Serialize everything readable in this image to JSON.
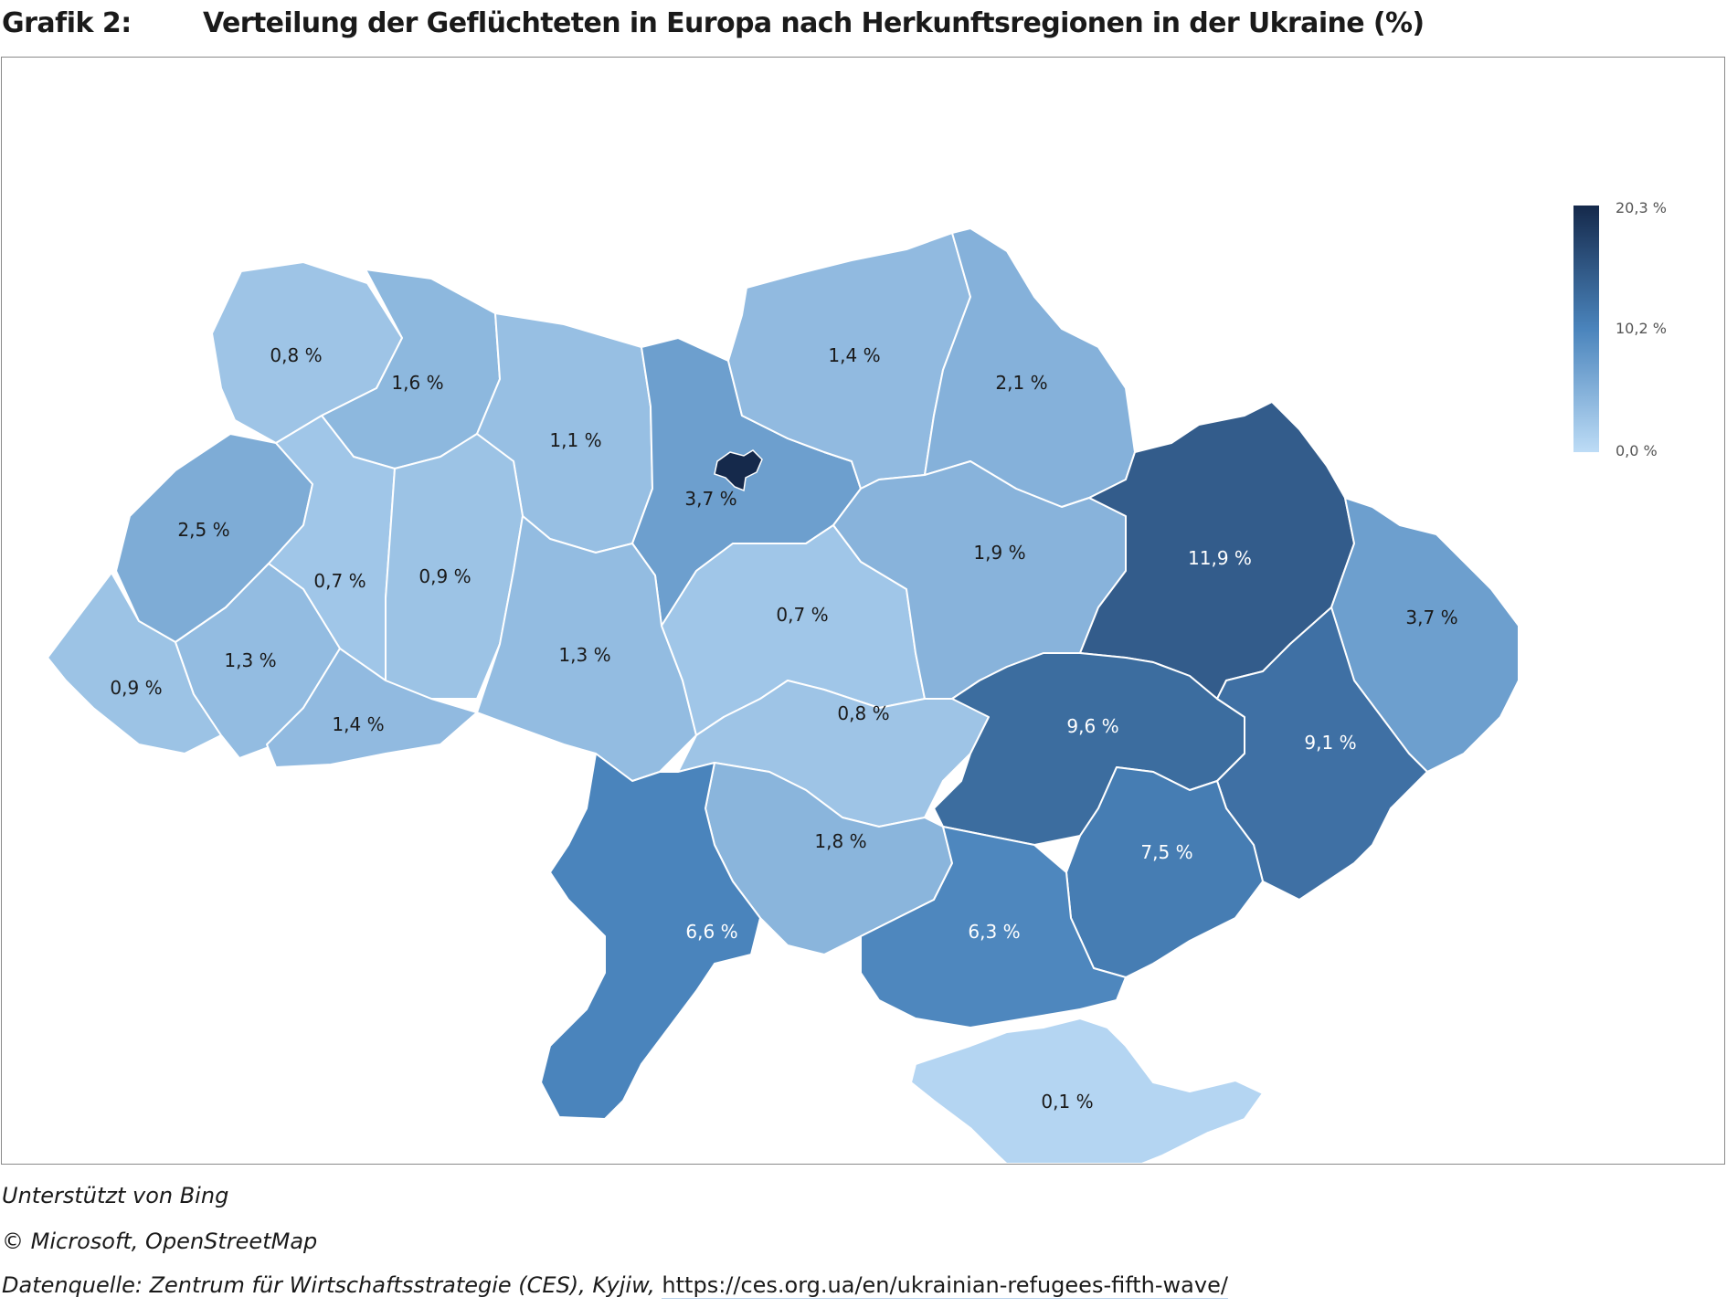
{
  "title": {
    "label": "Grafik 2:",
    "text": "Verteilung der Geflüchteten in Europa nach Herkunftsregionen in der Ukraine (%)"
  },
  "chart_data": {
    "type": "choropleth",
    "unit": "%",
    "regions": [
      {
        "id": "wolyn",
        "label": "0,8 %",
        "value": 0.8
      },
      {
        "id": "riwne",
        "label": "1,6 %",
        "value": 1.6
      },
      {
        "id": "schytomyr",
        "label": "1,1 %",
        "value": 1.1
      },
      {
        "id": "kyjiw-oblast",
        "label": "3,7 %",
        "value": 3.7
      },
      {
        "id": "kyjiw-stadt",
        "label": "",
        "value": 20.3
      },
      {
        "id": "tschernihiw",
        "label": "1,4 %",
        "value": 1.4
      },
      {
        "id": "sumy",
        "label": "2,1 %",
        "value": 2.1
      },
      {
        "id": "lwiw",
        "label": "2,5 %",
        "value": 2.5
      },
      {
        "id": "ternopil",
        "label": "0,7 %",
        "value": 0.7
      },
      {
        "id": "chmelnyzkyj",
        "label": "0,9 %",
        "value": 0.9
      },
      {
        "id": "winnyzja",
        "label": "1,3 %",
        "value": 1.3
      },
      {
        "id": "tscherkassy",
        "label": "0,7 %",
        "value": 0.7
      },
      {
        "id": "poltawa",
        "label": "1,9 %",
        "value": 1.9
      },
      {
        "id": "charkiw",
        "label": "11,9 %",
        "value": 11.9
      },
      {
        "id": "luhansk",
        "label": "3,7 %",
        "value": 3.7
      },
      {
        "id": "transkarpatien",
        "label": "0,9 %",
        "value": 0.9
      },
      {
        "id": "iwano-frankiwsk",
        "label": "1,3 %",
        "value": 1.3
      },
      {
        "id": "tscherniwzi",
        "label": "1,4 %",
        "value": 1.4
      },
      {
        "id": "kirowohrad",
        "label": "0,8 %",
        "value": 0.8
      },
      {
        "id": "dnipropetrowsk",
        "label": "9,6 %",
        "value": 9.6
      },
      {
        "id": "donezk",
        "label": "9,1 %",
        "value": 9.1
      },
      {
        "id": "saporischschja",
        "label": "7,5 %",
        "value": 7.5
      },
      {
        "id": "mykolajiw",
        "label": "1,8 %",
        "value": 1.8
      },
      {
        "id": "odesa",
        "label": "6,6 %",
        "value": 6.6
      },
      {
        "id": "cherson",
        "label": "6,3 %",
        "value": 6.3
      },
      {
        "id": "krim",
        "label": "0,1 %",
        "value": 0.1
      }
    ],
    "legend": {
      "min_label": "0,0 %",
      "mid_label": "10,2 %",
      "max_label": "20,3 %",
      "min": 0.0,
      "max": 20.3,
      "color_low": "#bddcf6",
      "color_high": "#15294b",
      "placement": "top-right"
    }
  },
  "colors": {
    "border": "#ffffff",
    "frame": "#8a8a8a",
    "label_dark": "#1a1a1a",
    "label_light": "#ffffff"
  },
  "footer": {
    "line1": "Unterstützt von Bing",
    "line2": "© Microsoft, OpenStreetMap",
    "line3_prefix": "Datenquelle: Zentrum für Wirtschaftsstrategie (CES), Kyjiw, ",
    "line3_link": "https://ces.org.ua/en/ukrainian-refugees-fifth-wave/"
  }
}
